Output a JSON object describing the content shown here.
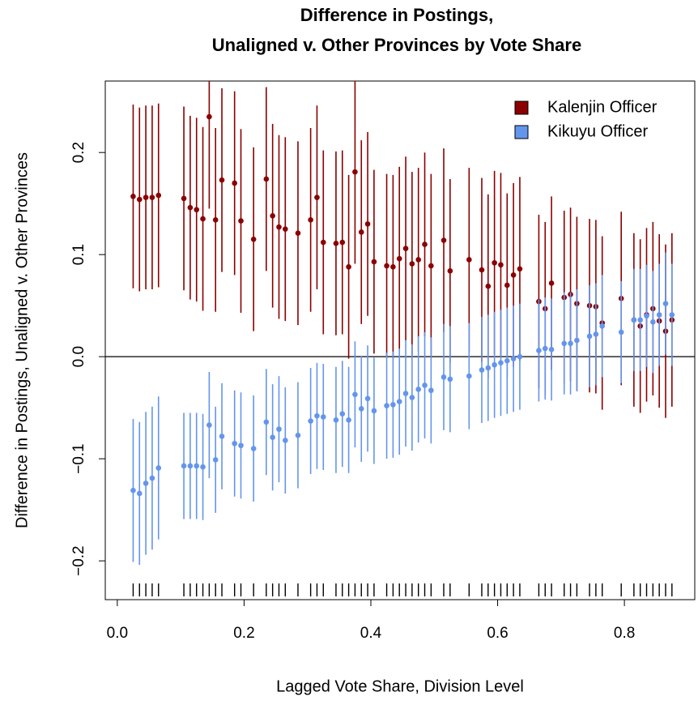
{
  "chart_data": {
    "type": "errorbar-scatter",
    "title": [
      "Difference in Postings,",
      "Unaligned v. Other Provinces by Vote Share"
    ],
    "x_label": "Lagged Vote Share, Division Level",
    "y_label": "Difference in Postings, Unaligned v. Other Provinces",
    "x": [
      0.025,
      0.035,
      0.045,
      0.055,
      0.065,
      0.105,
      0.115,
      0.125,
      0.135,
      0.145,
      0.155,
      0.165,
      0.185,
      0.195,
      0.215,
      0.235,
      0.245,
      0.255,
      0.265,
      0.285,
      0.305,
      0.315,
      0.325,
      0.345,
      0.355,
      0.365,
      0.375,
      0.385,
      0.395,
      0.405,
      0.425,
      0.435,
      0.445,
      0.455,
      0.465,
      0.475,
      0.485,
      0.495,
      0.515,
      0.525,
      0.555,
      0.575,
      0.585,
      0.595,
      0.605,
      0.615,
      0.625,
      0.635,
      0.665,
      0.675,
      0.685,
      0.705,
      0.715,
      0.725,
      0.745,
      0.755,
      0.765,
      0.795,
      0.815,
      0.825,
      0.835,
      0.845,
      0.855,
      0.865,
      0.875
    ],
    "series": [
      {
        "name": "Kalenjin Officer",
        "color": "#8b0000",
        "values": [
          0.157,
          0.154,
          0.156,
          0.156,
          0.158,
          0.155,
          0.146,
          0.144,
          0.135,
          0.235,
          0.134,
          0.173,
          0.17,
          0.133,
          0.115,
          0.174,
          0.138,
          0.127,
          0.125,
          0.121,
          0.134,
          0.156,
          0.112,
          0.111,
          0.112,
          0.088,
          0.181,
          0.122,
          0.13,
          0.093,
          0.089,
          0.088,
          0.096,
          0.106,
          0.091,
          0.095,
          0.11,
          0.089,
          0.114,
          0.084,
          0.095,
          0.085,
          0.069,
          0.092,
          0.09,
          0.07,
          0.08,
          0.086,
          0.054,
          0.047,
          0.072,
          0.058,
          0.061,
          0.052,
          0.05,
          0.049,
          0.033,
          0.057,
          0.036,
          0.03,
          0.041,
          0.047,
          0.035,
          0.025,
          0.036
        ],
        "errors": [
          0.09,
          0.09,
          0.09,
          0.09,
          0.09,
          0.09,
          0.09,
          0.09,
          0.09,
          0.09,
          0.09,
          0.09,
          0.09,
          0.09,
          0.09,
          0.09,
          0.09,
          0.09,
          0.09,
          0.09,
          0.09,
          0.09,
          0.09,
          0.09,
          0.09,
          0.09,
          0.09,
          0.09,
          0.09,
          0.09,
          0.09,
          0.09,
          0.09,
          0.09,
          0.09,
          0.09,
          0.09,
          0.09,
          0.09,
          0.09,
          0.09,
          0.09,
          0.09,
          0.09,
          0.09,
          0.09,
          0.09,
          0.09,
          0.085,
          0.085,
          0.085,
          0.085,
          0.085,
          0.085,
          0.085,
          0.085,
          0.085,
          0.085,
          0.085,
          0.085,
          0.085,
          0.085,
          0.085,
          0.085,
          0.085
        ]
      },
      {
        "name": "Kikuyu Officer",
        "color": "#6495ed",
        "values": [
          -0.131,
          -0.134,
          -0.124,
          -0.119,
          -0.109,
          -0.107,
          -0.107,
          -0.107,
          -0.108,
          -0.067,
          -0.101,
          -0.078,
          -0.085,
          -0.087,
          -0.09,
          -0.064,
          -0.079,
          -0.071,
          -0.082,
          -0.077,
          -0.063,
          -0.058,
          -0.059,
          -0.062,
          -0.056,
          -0.062,
          -0.037,
          -0.051,
          -0.041,
          -0.053,
          -0.048,
          -0.047,
          -0.044,
          -0.036,
          -0.04,
          -0.032,
          -0.028,
          -0.033,
          -0.02,
          -0.022,
          -0.019,
          -0.013,
          -0.011,
          -0.008,
          -0.006,
          -0.004,
          -0.002,
          0.0,
          0.006,
          0.008,
          0.007,
          0.013,
          0.013,
          0.016,
          0.02,
          0.022,
          0.03,
          0.024,
          0.036,
          0.036,
          0.04,
          0.034,
          0.041,
          0.052,
          0.041
        ],
        "errors": [
          0.07,
          0.07,
          0.07,
          0.07,
          0.07,
          0.052,
          0.052,
          0.052,
          0.052,
          0.052,
          0.052,
          0.052,
          0.052,
          0.052,
          0.052,
          0.052,
          0.052,
          0.052,
          0.052,
          0.052,
          0.052,
          0.052,
          0.052,
          0.052,
          0.052,
          0.052,
          0.052,
          0.052,
          0.052,
          0.052,
          0.052,
          0.052,
          0.052,
          0.052,
          0.052,
          0.052,
          0.052,
          0.052,
          0.052,
          0.052,
          0.052,
          0.052,
          0.052,
          0.052,
          0.052,
          0.052,
          0.052,
          0.052,
          0.05,
          0.05,
          0.05,
          0.05,
          0.05,
          0.05,
          0.05,
          0.05,
          0.05,
          0.05,
          0.05,
          0.05,
          0.05,
          0.05,
          0.05,
          0.05,
          0.05
        ]
      }
    ],
    "xlim": [
      -0.019,
      0.911
    ],
    "ylim": [
      -0.238,
      0.27
    ],
    "xticks": [
      {
        "value": 0,
        "label": "0.0"
      },
      0.2,
      0.4,
      0.6,
      0.8
    ],
    "yticks": [
      {
        "value": -0.2,
        "label": "−0.2"
      },
      {
        "value": -0.1,
        "label": "−0.1"
      },
      {
        "value": 0,
        "label": "0.0"
      },
      0.1,
      0.2
    ],
    "hline": 0,
    "rug": true,
    "legend": "top-right"
  }
}
